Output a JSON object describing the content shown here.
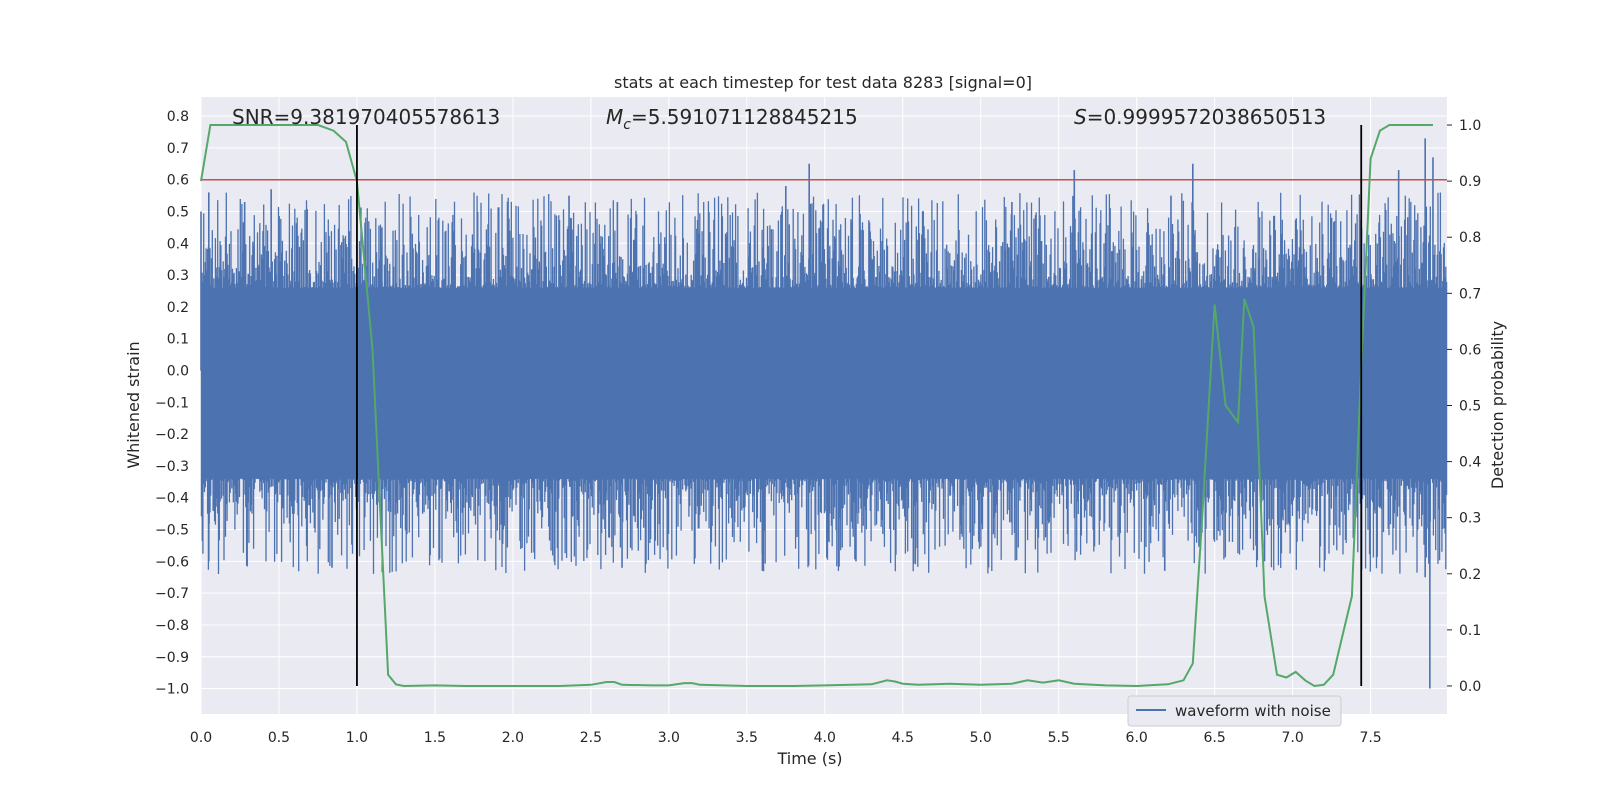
{
  "chart_data": {
    "type": "line",
    "title": "stats at each timestep for test data 8283 [signal=0]",
    "xlabel": "Time (s)",
    "ylabel_left": "Whitened strain",
    "ylabel_right": "Detection probability",
    "xlim": [
      0.0,
      7.99
    ],
    "ylim_left": [
      -1.08,
      0.86
    ],
    "ylim_right": [
      -0.05,
      1.05
    ],
    "xticks": [
      0.0,
      0.5,
      1.0,
      1.5,
      2.0,
      2.5,
      3.0,
      3.5,
      4.0,
      4.5,
      5.0,
      5.5,
      6.0,
      6.5,
      7.0,
      7.5
    ],
    "xtick_labels": [
      "0.0",
      "0.5",
      "1.0",
      "1.5",
      "2.0",
      "2.5",
      "3.0",
      "3.5",
      "4.0",
      "4.5",
      "5.0",
      "5.5",
      "6.0",
      "6.5",
      "7.0",
      "7.5"
    ],
    "yticks_left": [
      0.8,
      0.7,
      0.6,
      0.5,
      0.4,
      0.3,
      0.2,
      0.1,
      0.0,
      -0.1,
      -0.2,
      -0.3,
      -0.4,
      -0.5,
      -0.6,
      -0.7,
      -0.8,
      -0.9,
      -1.0
    ],
    "ytick_labels_left": [
      "0.8",
      "0.7",
      "0.6",
      "0.5",
      "0.4",
      "0.3",
      "0.2",
      "0.1",
      "0.0",
      "−0.1",
      "−0.2",
      "−0.3",
      "−0.4",
      "−0.5",
      "−0.6",
      "−0.7",
      "−0.8",
      "−0.9",
      "−1.0"
    ],
    "yticks_right": [
      1.0,
      0.9,
      0.8,
      0.7,
      0.6,
      0.5,
      0.4,
      0.3,
      0.2,
      0.1,
      0.0
    ],
    "ytick_labels_right": [
      "1.0",
      "0.9",
      "0.8",
      "0.7",
      "0.6",
      "0.5",
      "0.4",
      "0.3",
      "0.2",
      "0.1",
      "0.0"
    ],
    "grid": true,
    "annotations": {
      "snr": "SNR=9.381970405578613",
      "mc_symbol": "M",
      "mc_subscript": "c",
      "mc_value": "=5.591071128845215",
      "s_symbol": "S",
      "s_value": "=0.9999572038650513"
    },
    "threshold_y": 0.6,
    "vlines_x": [
      1.0,
      7.44
    ],
    "waveform": {
      "name": "waveform with noise",
      "duration": 7.99,
      "samples": 1600,
      "band_low": -0.33,
      "band_high": 0.24,
      "peaks_high": [
        [
          0.0,
          0.5
        ],
        [
          0.05,
          0.56
        ],
        [
          0.28,
          0.53
        ],
        [
          0.45,
          0.57
        ],
        [
          1.16,
          0.45
        ],
        [
          2.36,
          0.55
        ],
        [
          2.67,
          0.53
        ],
        [
          3.75,
          0.58
        ],
        [
          3.9,
          0.65
        ],
        [
          5.2,
          0.53
        ],
        [
          5.6,
          0.63
        ],
        [
          6.22,
          0.55
        ],
        [
          6.36,
          0.65
        ],
        [
          7.25,
          0.48
        ],
        [
          7.68,
          0.63
        ],
        [
          7.85,
          0.73
        ],
        [
          7.9,
          0.67
        ]
      ],
      "peaks_low": [
        [
          0.05,
          -0.6
        ],
        [
          0.84,
          -0.62
        ],
        [
          2.7,
          -0.62
        ],
        [
          3.6,
          -0.63
        ],
        [
          4.2,
          -0.6
        ],
        [
          6.18,
          -0.63
        ],
        [
          6.4,
          -0.55
        ],
        [
          6.82,
          -0.6
        ],
        [
          7.85,
          -0.65
        ],
        [
          7.88,
          -1.0
        ]
      ]
    },
    "detection_probability": {
      "x": [
        0.0,
        0.06,
        0.12,
        0.5,
        0.75,
        0.85,
        0.93,
        1.0,
        1.1,
        1.2,
        1.25,
        1.3,
        1.5,
        1.7,
        2.0,
        2.3,
        2.5,
        2.6,
        2.65,
        2.7,
        2.9,
        3.0,
        3.1,
        3.15,
        3.2,
        3.5,
        3.8,
        4.0,
        4.3,
        4.4,
        4.45,
        4.5,
        4.6,
        4.8,
        5.0,
        5.2,
        5.3,
        5.4,
        5.5,
        5.6,
        5.8,
        6.0,
        6.2,
        6.3,
        6.36,
        6.42,
        6.5,
        6.57,
        6.65,
        6.69,
        6.75,
        6.82,
        6.9,
        6.96,
        7.02,
        7.08,
        7.14,
        7.2,
        7.26,
        7.32,
        7.38,
        7.44,
        7.5,
        7.56,
        7.62,
        7.75,
        7.9
      ],
      "y": [
        0.9,
        1.0,
        1.0,
        1.0,
        1.0,
        0.99,
        0.97,
        0.9,
        0.6,
        0.02,
        0.003,
        0.0,
        0.001,
        0.0,
        0.0,
        0.0,
        0.002,
        0.007,
        0.007,
        0.002,
        0.001,
        0.001,
        0.005,
        0.005,
        0.002,
        0.0,
        0.0,
        0.001,
        0.003,
        0.01,
        0.008,
        0.004,
        0.002,
        0.004,
        0.002,
        0.004,
        0.01,
        0.006,
        0.01,
        0.004,
        0.001,
        0.0,
        0.003,
        0.01,
        0.04,
        0.3,
        0.68,
        0.5,
        0.47,
        0.69,
        0.64,
        0.16,
        0.02,
        0.015,
        0.025,
        0.01,
        0.0,
        0.002,
        0.02,
        0.09,
        0.16,
        0.57,
        0.94,
        0.99,
        1.0,
        1.0,
        1.0
      ]
    },
    "legend": {
      "label": "waveform with noise",
      "location": "lower-right"
    }
  },
  "colors": {
    "background": "#eaeaf2",
    "grid": "#ffffff",
    "waveform": "#4c72b0",
    "probability": "#55a868",
    "threshold": "#c44e52",
    "vline": "#000000"
  }
}
